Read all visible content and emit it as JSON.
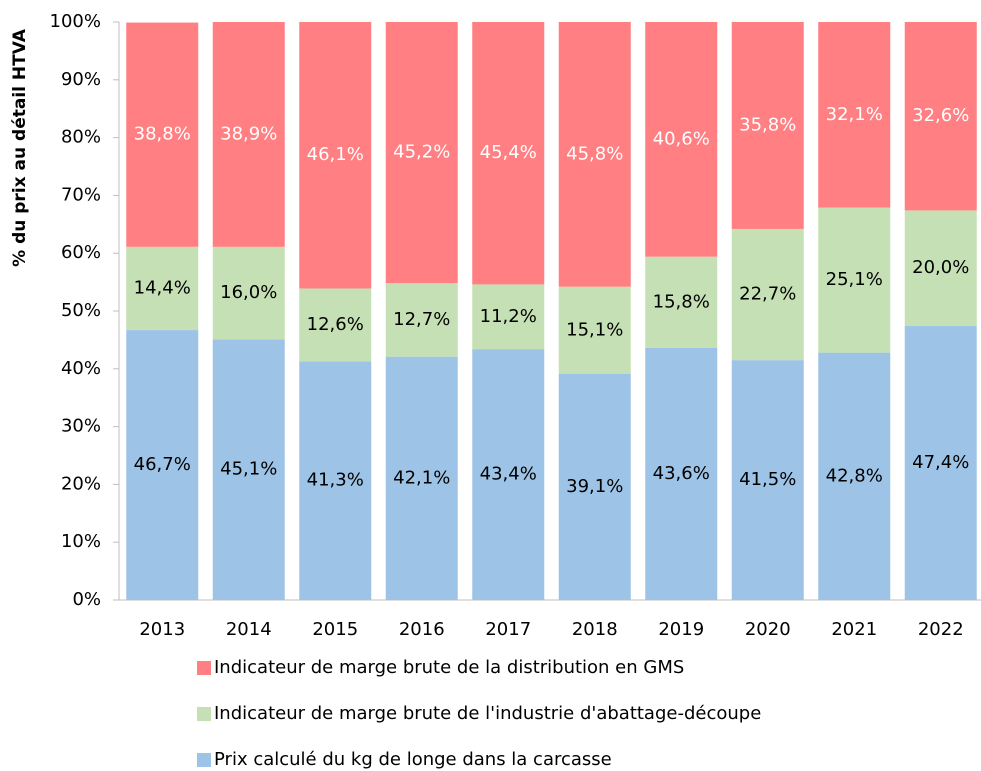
{
  "chart_data": {
    "type": "stacked_bar",
    "ylabel": "% du prix au détail HTVA",
    "categories": [
      "2013",
      "2014",
      "2015",
      "2016",
      "2017",
      "2018",
      "2019",
      "2020",
      "2021",
      "2022"
    ],
    "series": [
      {
        "name": "Prix calculé du kg de longe dans la carcasse",
        "color": "#9dc3e6",
        "label_color": "#000000",
        "values": [
          46.7,
          45.1,
          41.3,
          42.1,
          43.4,
          39.1,
          43.6,
          41.5,
          42.8,
          47.4
        ],
        "value_labels": [
          "46,7%",
          "45,1%",
          "41,3%",
          "42,1%",
          "43,4%",
          "39,1%",
          "43,6%",
          "41,5%",
          "42,8%",
          "47,4%"
        ]
      },
      {
        "name": "Indicateur de marge brute de l'industrie d'abattage-découpe",
        "color": "#c5e0b4",
        "label_color": "#000000",
        "values": [
          14.4,
          16.0,
          12.6,
          12.7,
          11.2,
          15.1,
          15.8,
          22.7,
          25.1,
          20.0
        ],
        "value_labels": [
          "14,4%",
          "16,0%",
          "12,6%",
          "12,7%",
          "11,2%",
          "15,1%",
          "15,8%",
          "22,7%",
          "25,1%",
          "20,0%"
        ]
      },
      {
        "name": "Indicateur de marge brute de la distribution en GMS",
        "color": "#ff7f82",
        "label_color": "#ffffff",
        "values": [
          38.8,
          38.9,
          46.1,
          45.2,
          45.4,
          45.8,
          40.6,
          35.8,
          32.1,
          32.6
        ],
        "value_labels": [
          "38,8%",
          "38,9%",
          "46,1%",
          "45,2%",
          "45,4%",
          "45,8%",
          "40,6%",
          "35,8%",
          "32,1%",
          "32,6%"
        ]
      }
    ],
    "ylim": [
      0,
      100
    ],
    "yticks": [
      {
        "value": 0,
        "label": "0%"
      },
      {
        "value": 10,
        "label": "10%"
      },
      {
        "value": 20,
        "label": "20%"
      },
      {
        "value": 30,
        "label": "30%"
      },
      {
        "value": 40,
        "label": "40%"
      },
      {
        "value": 50,
        "label": "50%"
      },
      {
        "value": 60,
        "label": "60%"
      },
      {
        "value": 70,
        "label": "70%"
      },
      {
        "value": 80,
        "label": "80%"
      },
      {
        "value": 90,
        "label": "90%"
      },
      {
        "value": 100,
        "label": "100%"
      }
    ],
    "legend_position": "bottom"
  }
}
